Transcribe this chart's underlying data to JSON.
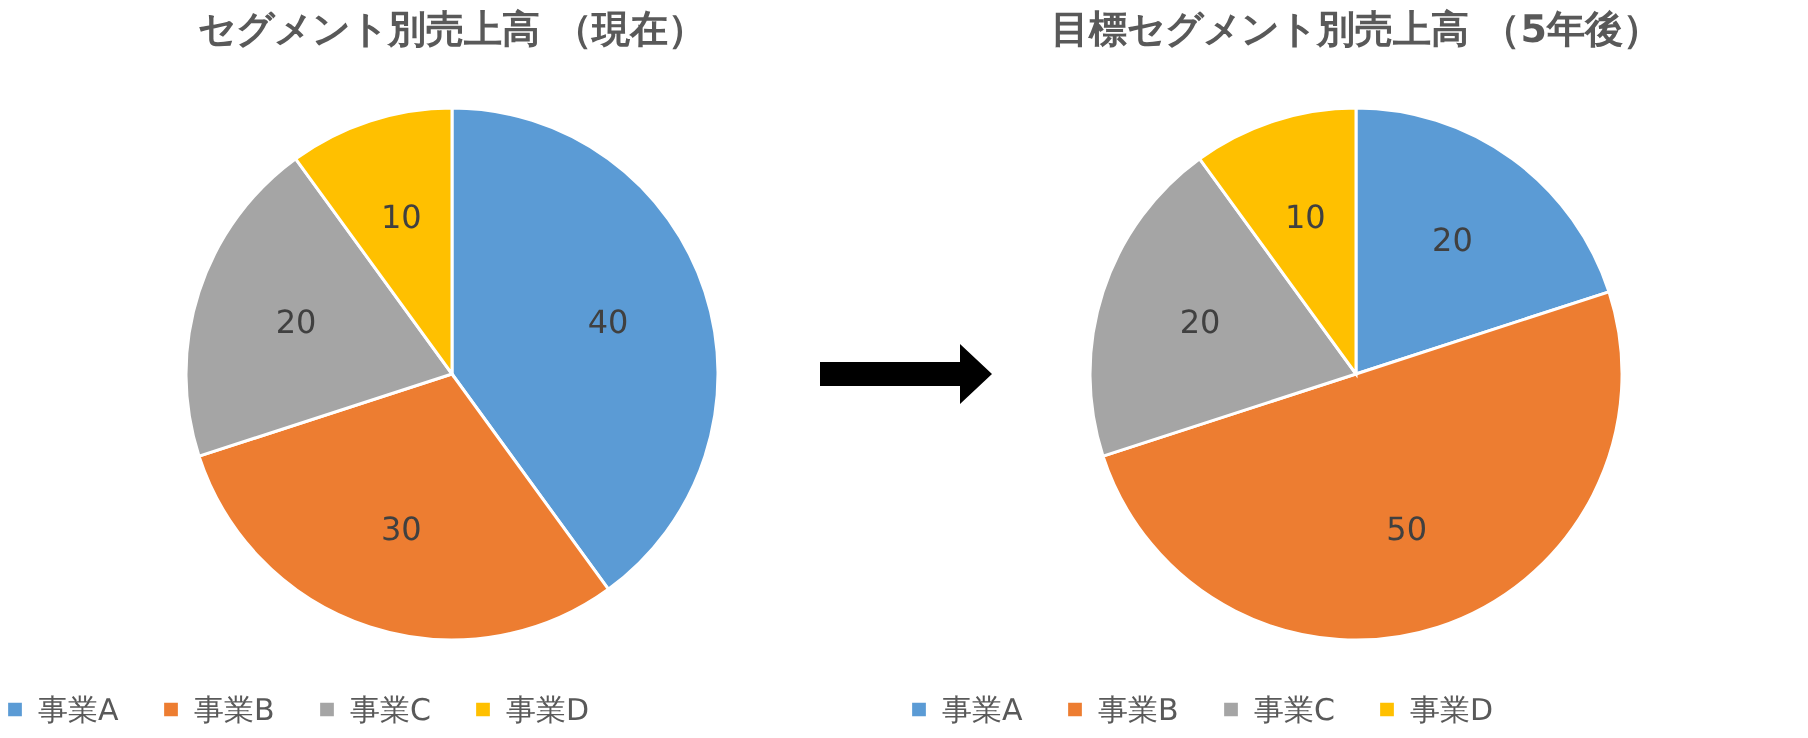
{
  "chart_data": [
    {
      "type": "pie",
      "title": "セグメント別売上高 （現在）",
      "categories": [
        "事業A",
        "事業B",
        "事業C",
        "事業D"
      ],
      "values": [
        40,
        30,
        20,
        10
      ],
      "colors": [
        "#5b9bd5",
        "#ed7d31",
        "#a5a5a5",
        "#ffc000"
      ],
      "data_labels": true,
      "legend": "bottom"
    },
    {
      "type": "pie",
      "title": "目標セグメント別売上高 （5年後）",
      "categories": [
        "事業A",
        "事業B",
        "事業C",
        "事業D"
      ],
      "values": [
        20,
        50,
        20,
        10
      ],
      "colors": [
        "#5b9bd5",
        "#ed7d31",
        "#a5a5a5",
        "#ffc000"
      ],
      "data_labels": true,
      "legend": "bottom"
    }
  ]
}
